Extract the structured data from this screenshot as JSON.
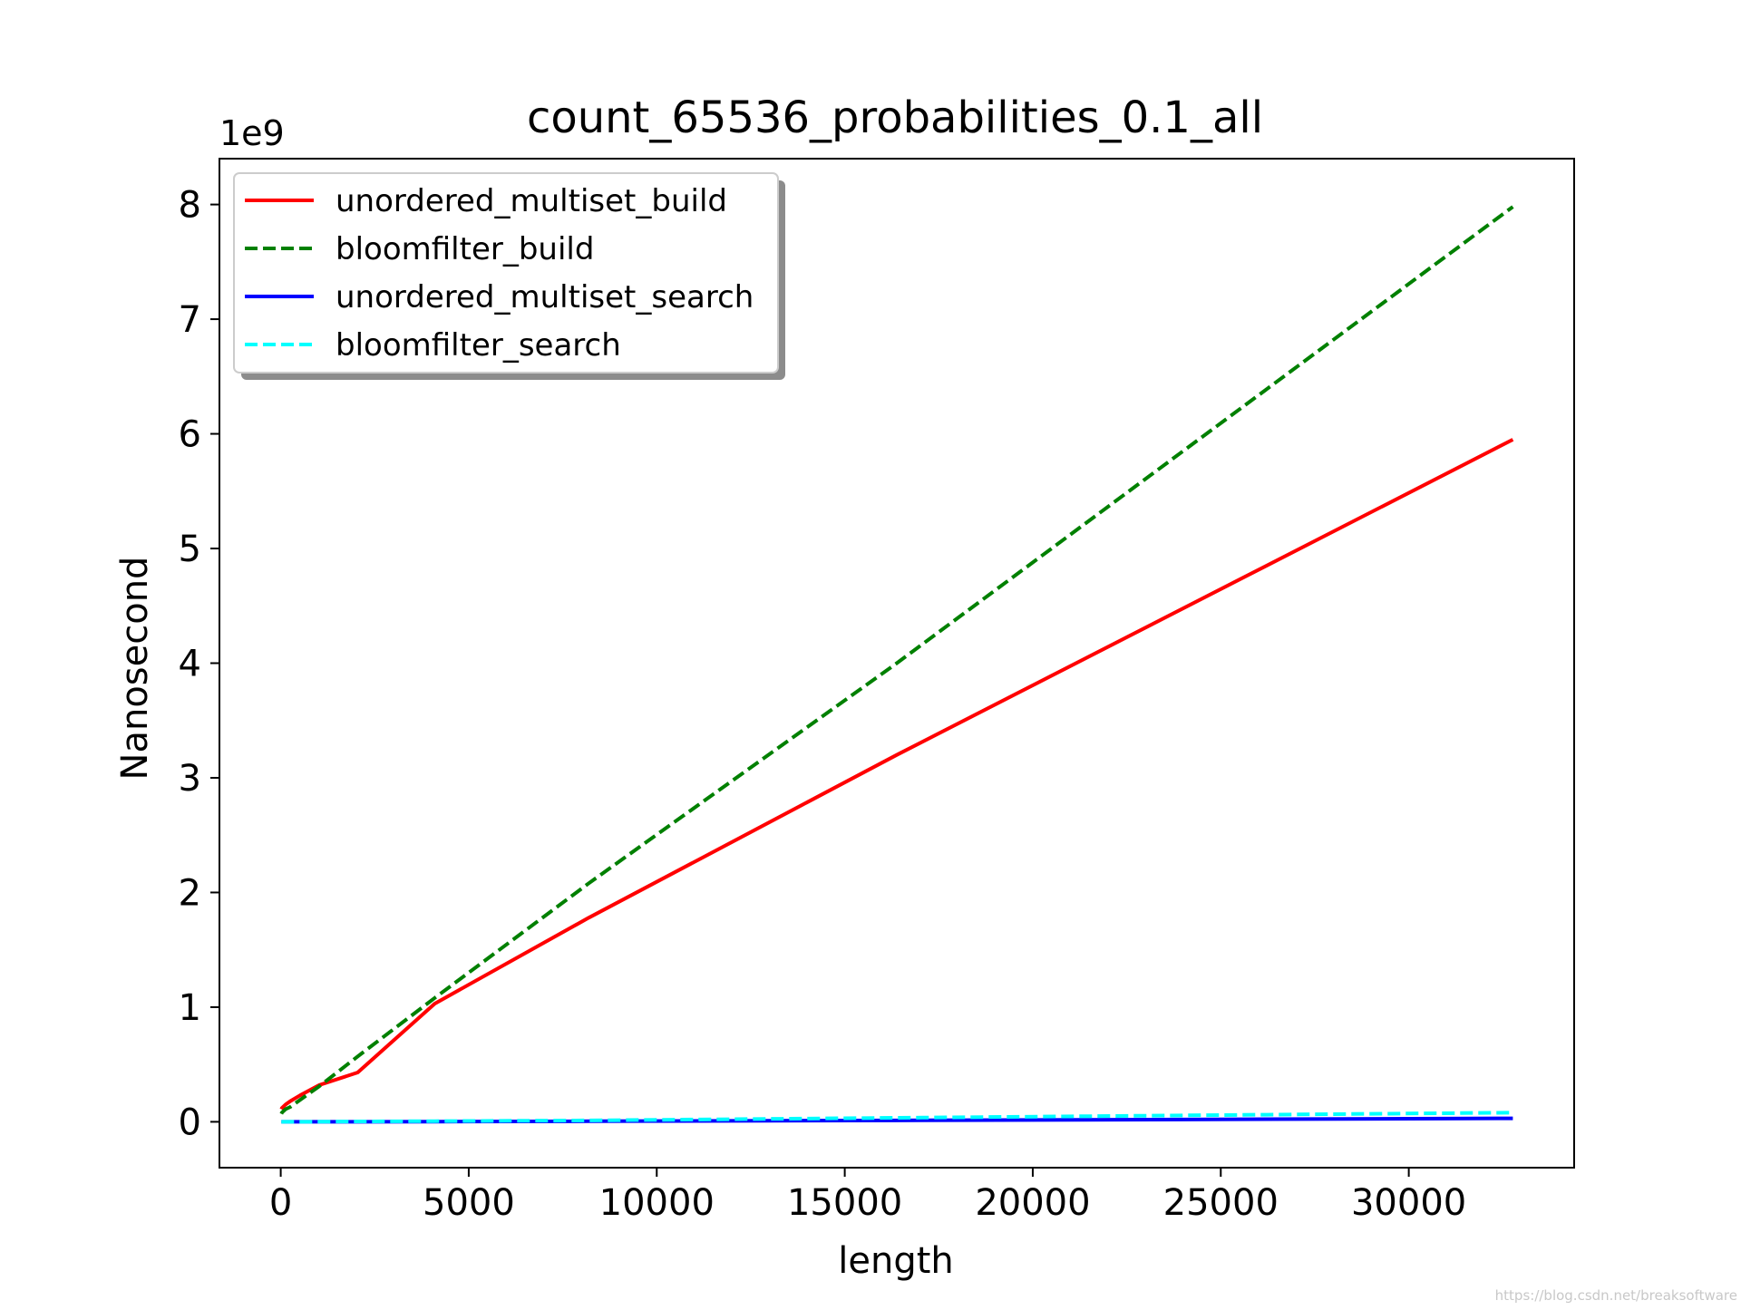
{
  "chart_data": {
    "type": "line",
    "title": "count_65536_probabilities_0.1_all",
    "xlabel": "length",
    "ylabel": "Nanosecond",
    "y_offset_label": "1e9",
    "xlim": [
      -1630,
      34398
    ],
    "ylim": [
      -0.4,
      8.4
    ],
    "x_ticks": [
      0,
      5000,
      10000,
      15000,
      20000,
      25000,
      30000
    ],
    "x_tick_labels": [
      "0",
      "5000",
      "10000",
      "15000",
      "20000",
      "25000",
      "30000"
    ],
    "y_ticks": [
      0,
      1,
      2,
      3,
      4,
      5,
      6,
      7,
      8
    ],
    "y_tick_labels": [
      "0",
      "1",
      "2",
      "3",
      "4",
      "5",
      "6",
      "7",
      "8"
    ],
    "grid": false,
    "legend_position": "top-left",
    "x": [
      16,
      32,
      64,
      128,
      256,
      512,
      1024,
      2048,
      4096,
      8192,
      16384,
      32768
    ],
    "series": [
      {
        "name": "unordered_multiset_build",
        "color": "#ff0000",
        "style": "solid",
        "values": [
          0.11,
          0.12,
          0.13,
          0.15,
          0.18,
          0.23,
          0.32,
          0.43,
          1.03,
          1.78,
          3.2,
          5.95
        ]
      },
      {
        "name": "bloomfilter_build",
        "color": "#008000",
        "style": "dashed",
        "values": [
          0.07,
          0.08,
          0.09,
          0.11,
          0.13,
          0.19,
          0.31,
          0.57,
          1.08,
          2.08,
          4.0,
          7.98
        ]
      },
      {
        "name": "unordered_multiset_search",
        "color": "#0000ff",
        "style": "solid",
        "values": [
          0.0,
          0.0,
          0.0,
          0.0,
          0.0,
          0.0,
          0.0,
          0.0,
          0.002,
          0.005,
          0.012,
          0.03
        ]
      },
      {
        "name": "bloomfilter_search",
        "color": "#00ffff",
        "style": "dashed",
        "values": [
          0.0,
          0.0,
          0.0,
          0.0,
          0.0,
          0.0,
          0.001,
          0.003,
          0.006,
          0.012,
          0.035,
          0.08
        ]
      }
    ]
  },
  "watermark": "https://blog.csdn.net/breaksoftware"
}
